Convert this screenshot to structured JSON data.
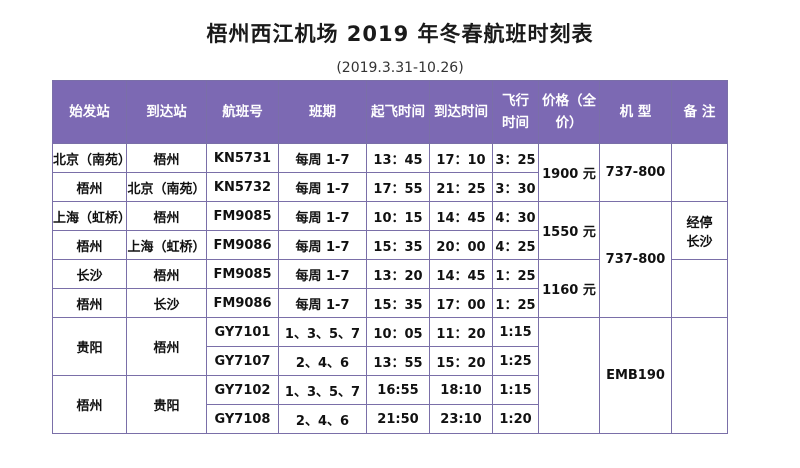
{
  "title": "梧州西江机场 2019 年冬春航班时刻表",
  "subtitle": "(2019.3.31-10.26)",
  "headers": {
    "origin": "始发站",
    "destination": "到达站",
    "flight_no": "航班号",
    "schedule": "班期",
    "depart": "起飞时间",
    "arrive": "到达时间",
    "duration_l1": "飞行",
    "duration_l2": "时间",
    "price_l1": "价格（全",
    "price_l2": "价）",
    "aircraft": "机 型",
    "remarks": "备 注"
  },
  "groups": {
    "g1": {
      "price": "1900 元",
      "aircraft": "737-800"
    },
    "g2": {
      "price": "1550 元",
      "remarks_l1": "经停",
      "remarks_l2": "长沙"
    },
    "g23": {
      "aircraft": "737-800"
    },
    "g3": {
      "price": "1160 元"
    },
    "g45": {
      "aircraft": "EMB190"
    },
    "g4": {
      "origin": "贵阳",
      "destination": "梧州"
    },
    "g5": {
      "origin": "梧州",
      "destination": "贵阳"
    }
  },
  "rows": [
    {
      "origin": "北京（南苑）",
      "destination": "梧州",
      "flight": "KN5731",
      "days": "每周 1-7",
      "dep": "13：45",
      "arr": "17：10",
      "dur": "3：25"
    },
    {
      "origin": "梧州",
      "destination": "北京（南苑）",
      "flight": "KN5732",
      "days": "每周 1-7",
      "dep": "17：55",
      "arr": "21：25",
      "dur": "3：30"
    },
    {
      "origin": "上海（虹桥）",
      "destination": "梧州",
      "flight": "FM9085",
      "days": "每周 1-7",
      "dep": "10：15",
      "arr": "14：45",
      "dur": "4：30"
    },
    {
      "origin": "梧州",
      "destination": "上海（虹桥）",
      "flight": "FM9086",
      "days": "每周 1-7",
      "dep": "15：35",
      "arr": "20：00",
      "dur": "4：25"
    },
    {
      "origin": "长沙",
      "destination": "梧州",
      "flight": "FM9085",
      "days": "每周 1-7",
      "dep": "13：20",
      "arr": "14：45",
      "dur": "1：25"
    },
    {
      "origin": "梧州",
      "destination": "长沙",
      "flight": "FM9086",
      "days": "每周 1-7",
      "dep": "15：35",
      "arr": "17：00",
      "dur": "1：25"
    },
    {
      "flight": "GY7101",
      "days": "1、3、5、7",
      "dep": "10：05",
      "arr": "11：20",
      "dur": "1:15"
    },
    {
      "flight": "GY7107",
      "days": "2、4、6",
      "dep": "13：55",
      "arr": "15：20",
      "dur": "1:25"
    },
    {
      "flight": "GY7102",
      "days": "1、3、5、7",
      "dep": "16:55",
      "arr": "18:10",
      "dur": "1:15"
    },
    {
      "flight": "GY7108",
      "days": "2、4、6",
      "dep": "21:50",
      "arr": "23:10",
      "dur": "1:20"
    }
  ]
}
